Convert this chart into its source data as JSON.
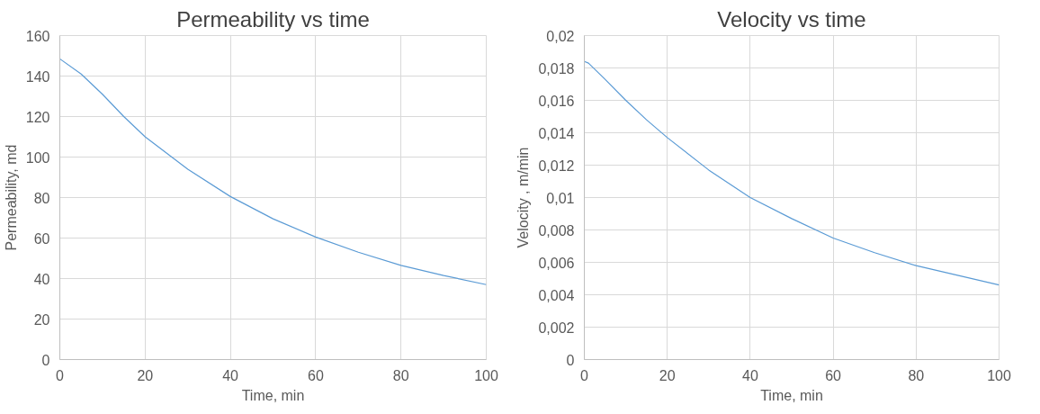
{
  "chart_data": [
    {
      "type": "line",
      "title": "Permeability vs time",
      "xlabel": "Time, min",
      "ylabel": "Permeability, md",
      "x": [
        0,
        5,
        10,
        15,
        20,
        30,
        40,
        50,
        60,
        70,
        80,
        90,
        100
      ],
      "series": [
        {
          "color": "#5b9bd5",
          "values": [
            148.5,
            141,
            131,
            120,
            110,
            94,
            80.5,
            69.5,
            60.5,
            53,
            46.5,
            41.5,
            37
          ]
        }
      ],
      "xlim": [
        0,
        100
      ],
      "xticks": [
        0,
        20,
        40,
        60,
        80,
        100
      ],
      "ylim": [
        0,
        160
      ],
      "yticks": [
        0,
        20,
        40,
        60,
        80,
        100,
        120,
        140,
        160
      ],
      "grid": true,
      "marker": "none",
      "line_style": "solid"
    },
    {
      "type": "line",
      "title": "Velocity vs time",
      "xlabel": "Time, min",
      "ylabel": "Velocity , m/min",
      "x": [
        0,
        1,
        5,
        10,
        15,
        20,
        30,
        40,
        50,
        60,
        70,
        80,
        90,
        100
      ],
      "series": [
        {
          "color": "#5b9bd5",
          "values": [
            0.0184,
            0.0183,
            0.0173,
            0.016,
            0.0148,
            0.0137,
            0.0117,
            0.01,
            0.0087,
            0.0075,
            0.0066,
            0.0058,
            0.0052,
            0.0046
          ]
        }
      ],
      "xlim": [
        0,
        100
      ],
      "xticks": [
        0,
        20,
        40,
        60,
        80,
        100
      ],
      "ylim": [
        0,
        0.02
      ],
      "yticks": [
        0,
        {
          "value": 0.002,
          "label": "0,002"
        },
        {
          "value": 0.004,
          "label": "0,004"
        },
        {
          "value": 0.006,
          "label": "0,006"
        },
        {
          "value": 0.008,
          "label": "0,008"
        },
        {
          "value": 0.01,
          "label": "0,01"
        },
        {
          "value": 0.012,
          "label": "0,012"
        },
        {
          "value": 0.014,
          "label": "0,014"
        },
        {
          "value": 0.016,
          "label": "0,016"
        },
        {
          "value": 0.018,
          "label": "0,018"
        },
        {
          "value": 0.02,
          "label": "0,02"
        }
      ],
      "grid": true,
      "marker": "none",
      "line_style": "solid"
    }
  ]
}
